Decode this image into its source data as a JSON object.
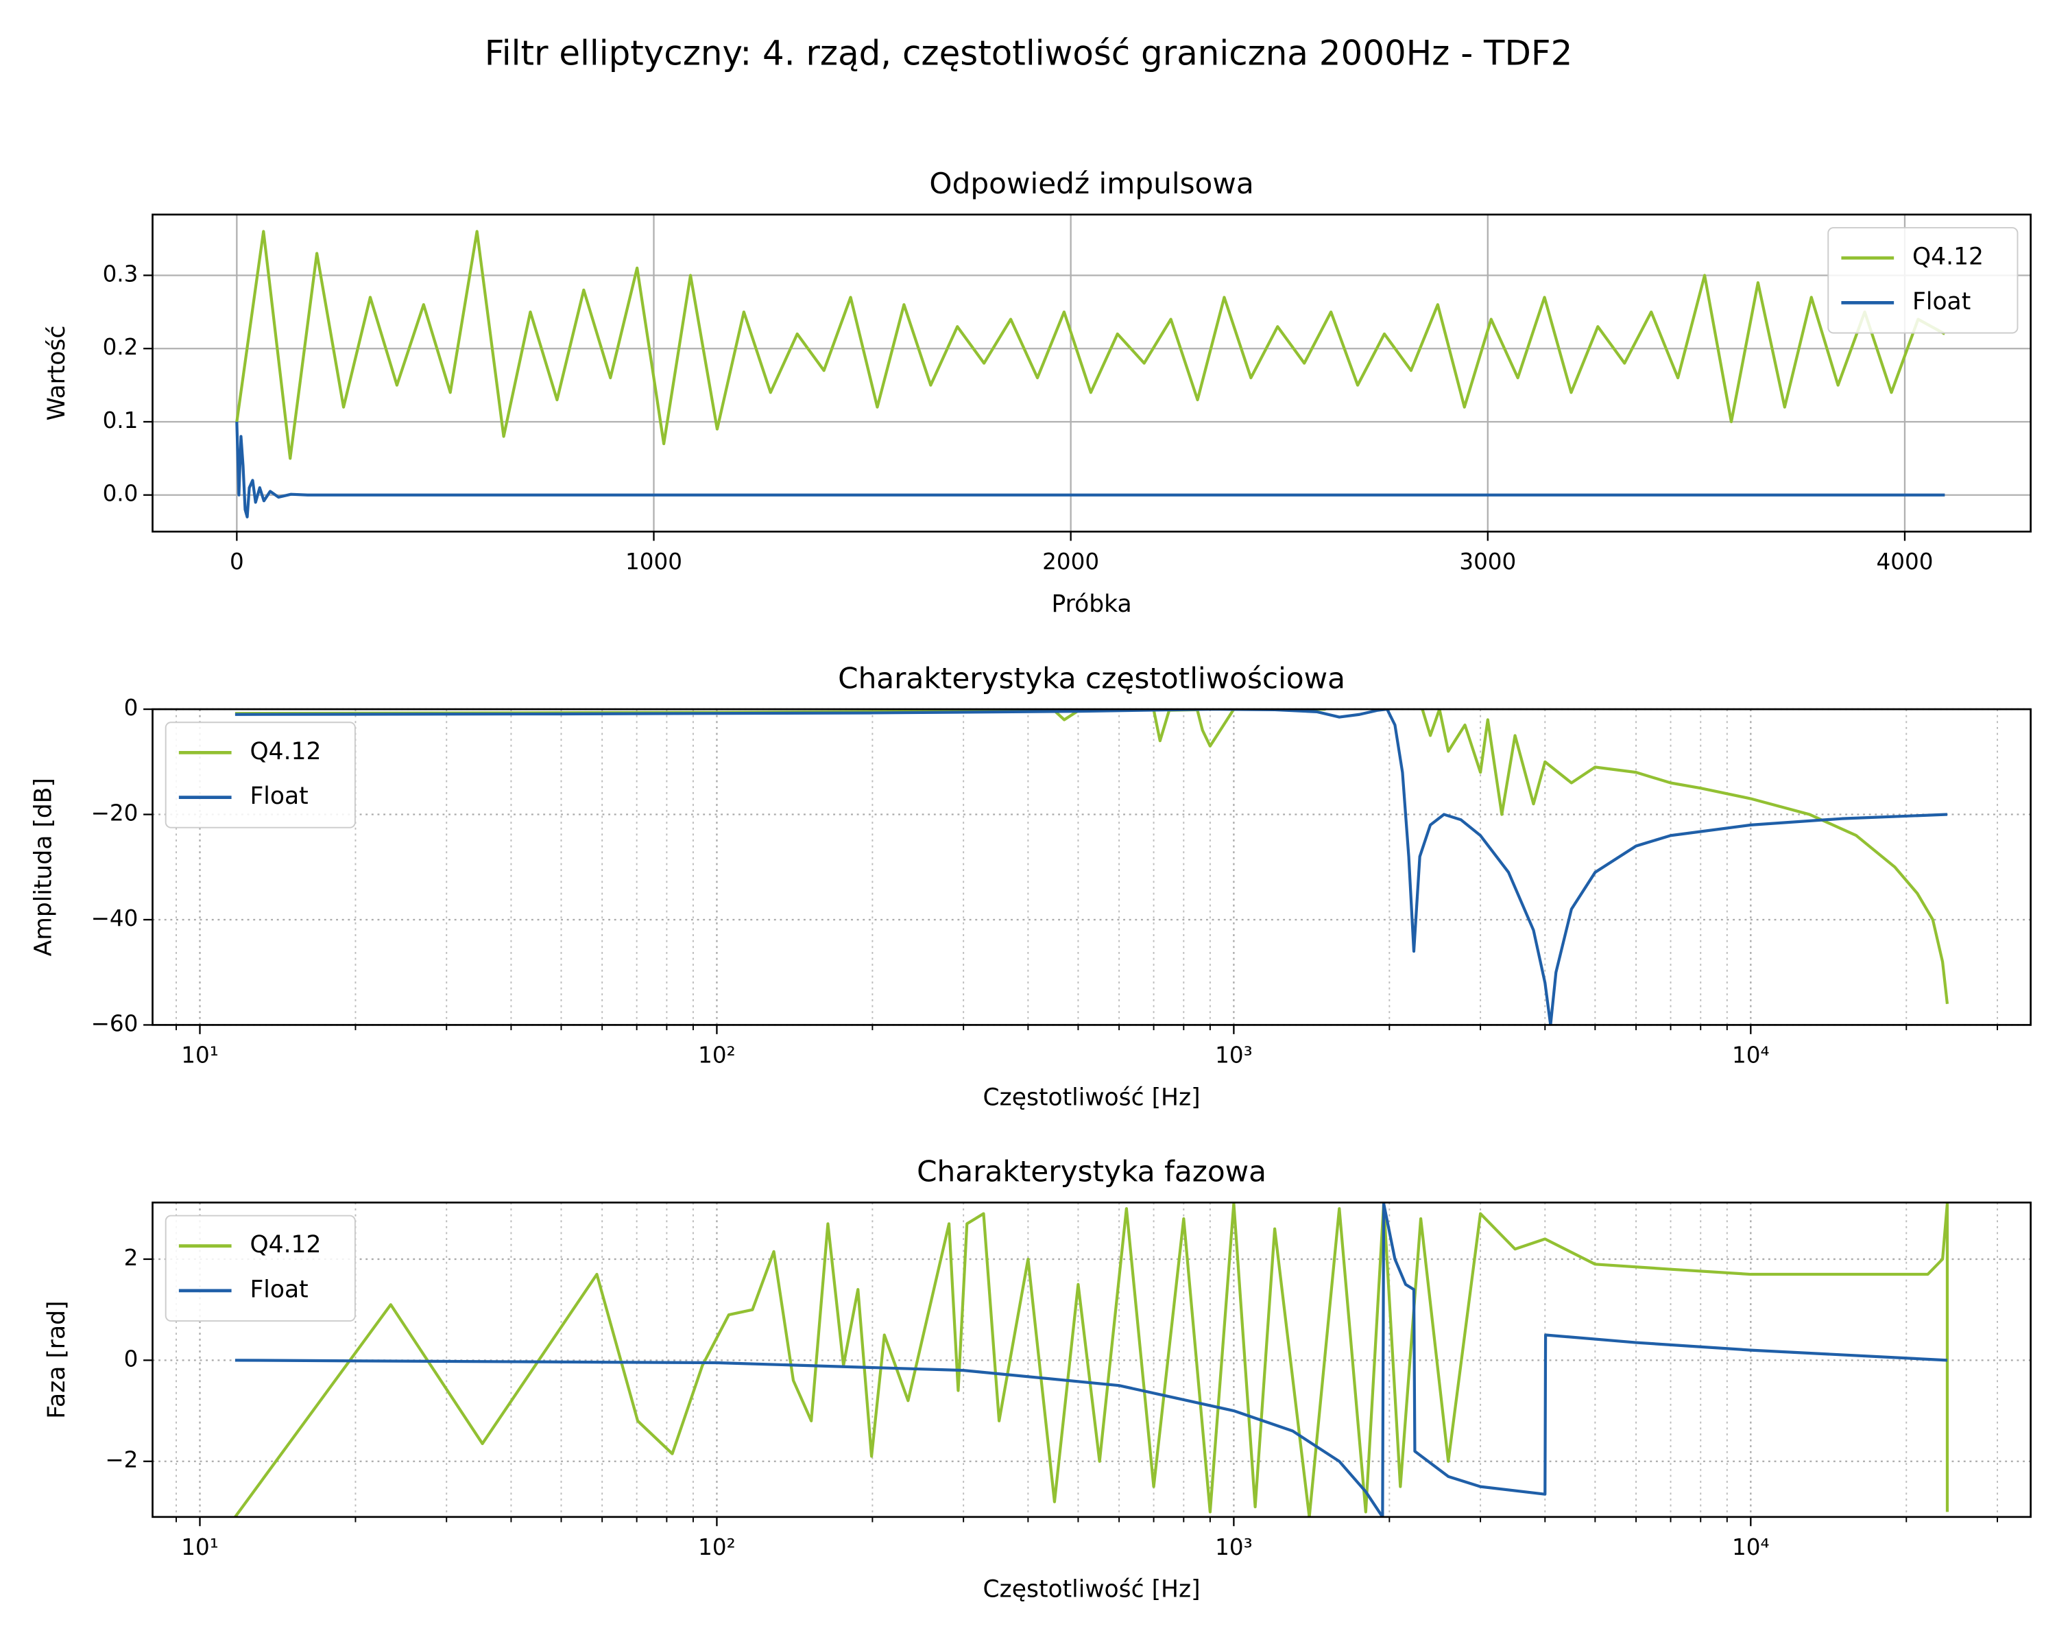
{
  "title": "Filtr elliptyczny: 4. rząd, częstotliwość graniczna 2000Hz - TDF2",
  "chart_data": [
    {
      "type": "line",
      "title": "Odpowiedź impulsowa",
      "xlabel": "Próbka",
      "ylabel": "Wartość",
      "xlim": [
        -202,
        4302
      ],
      "ylim": [
        -0.05,
        0.383
      ],
      "xticks": [
        0,
        1000,
        2000,
        3000,
        4000
      ],
      "yticks": [
        {
          "value": 0,
          "label": "0.0"
        },
        0.1,
        0.2,
        0.3
      ],
      "grid": "solid",
      "legend": "upper right",
      "series": [
        {
          "name": "Q4.12",
          "color": "#92c032",
          "x": [
            0,
            64,
            128,
            192,
            256,
            320,
            384,
            448,
            512,
            576,
            640,
            704,
            768,
            832,
            896,
            960,
            1024,
            1088,
            1152,
            1216,
            1280,
            1344,
            1408,
            1472,
            1536,
            1600,
            1664,
            1728,
            1792,
            1856,
            1920,
            1984,
            2048,
            2112,
            2176,
            2240,
            2304,
            2368,
            2432,
            2496,
            2560,
            2624,
            2688,
            2752,
            2816,
            2880,
            2944,
            3008,
            3072,
            3136,
            3200,
            3264,
            3328,
            3392,
            3456,
            3520,
            3584,
            3648,
            3712,
            3776,
            3840,
            3904,
            3968,
            4032,
            4096
          ],
          "values": [
            0.1,
            0.36,
            0.05,
            0.33,
            0.12,
            0.27,
            0.15,
            0.26,
            0.14,
            0.36,
            0.08,
            0.25,
            0.13,
            0.28,
            0.16,
            0.31,
            0.07,
            0.3,
            0.09,
            0.25,
            0.14,
            0.22,
            0.17,
            0.27,
            0.12,
            0.26,
            0.15,
            0.23,
            0.18,
            0.24,
            0.16,
            0.25,
            0.14,
            0.22,
            0.18,
            0.24,
            0.13,
            0.27,
            0.16,
            0.23,
            0.18,
            0.25,
            0.15,
            0.22,
            0.17,
            0.26,
            0.12,
            0.24,
            0.16,
            0.27,
            0.14,
            0.23,
            0.18,
            0.25,
            0.16,
            0.3,
            0.1,
            0.29,
            0.12,
            0.27,
            0.15,
            0.25,
            0.14,
            0.24,
            0.22
          ]
        },
        {
          "name": "Float",
          "color": "#1f5fa8",
          "x": [
            0,
            5,
            10,
            15,
            20,
            25,
            30,
            38,
            45,
            55,
            65,
            80,
            100,
            130,
            170,
            4096
          ],
          "values": [
            0.1,
            0.0,
            0.08,
            0.04,
            -0.02,
            -0.03,
            0.01,
            0.02,
            -0.01,
            0.01,
            -0.008,
            0.005,
            -0.003,
            0.001,
            0,
            0
          ]
        }
      ]
    },
    {
      "type": "line",
      "title": "Charakterystyka częstotliwościowa",
      "xlabel": "Częstotliwość [Hz]",
      "ylabel": "Amplituda [dB]",
      "xscale": "log",
      "xlim": [
        8.1,
        34800
      ],
      "ylim": [
        -60,
        0
      ],
      "xticks": [
        {
          "value": 10,
          "label": "10¹"
        },
        {
          "value": 100,
          "label": "10²"
        },
        {
          "value": 1000,
          "label": "10³"
        },
        {
          "value": 10000,
          "label": "10⁴"
        }
      ],
      "yticks": [
        {
          "value": -60,
          "label": "−60"
        },
        {
          "value": -40,
          "label": "−40"
        },
        {
          "value": -20,
          "label": "−20"
        },
        0
      ],
      "grid": "dotted",
      "minor_grid": true,
      "legend": "upper left",
      "series": [
        {
          "name": "Q4.12",
          "color": "#92c032",
          "x": [
            11.7,
            100,
            300,
            450,
            470,
            500,
            600,
            700,
            720,
            750,
            850,
            870,
            900,
            1000,
            1500,
            2000,
            2100,
            2200,
            2300,
            2400,
            2500,
            2600,
            2800,
            3000,
            3100,
            3300,
            3500,
            3800,
            4000,
            4500,
            5000,
            6000,
            7000,
            8000,
            10000,
            13000,
            16000,
            19000,
            21000,
            22500,
            23500,
            24000
          ],
          "values": [
            -0.8,
            -0.6,
            -0.4,
            -0.3,
            -2,
            -0.3,
            -0.2,
            -0.1,
            -6,
            -0.2,
            -0.1,
            -4,
            -7,
            0,
            0,
            5,
            2,
            3,
            1,
            -5,
            0,
            -8,
            -3,
            -12,
            -2,
            -20,
            -5,
            -18,
            -10,
            -14,
            -11,
            -12,
            -14,
            -15,
            -17,
            -20,
            -24,
            -30,
            -35,
            -40,
            -48,
            -56
          ]
        },
        {
          "name": "Float",
          "color": "#1f5fa8",
          "x": [
            11.7,
            50,
            200,
            500,
            900,
            1200,
            1450,
            1600,
            1750,
            1900,
            1980,
            2050,
            2120,
            2180,
            2230,
            2290,
            2400,
            2550,
            2750,
            3000,
            3400,
            3800,
            4000,
            4100,
            4200,
            4500,
            5000,
            6000,
            7000,
            10000,
            15000,
            24000
          ],
          "values": [
            -1,
            -0.9,
            -0.7,
            -0.4,
            0,
            -0.1,
            -0.5,
            -1.5,
            -1,
            -0.2,
            0,
            -3,
            -12,
            -28,
            -46,
            -28,
            -22,
            -20,
            -21,
            -24,
            -31,
            -42,
            -52,
            -60,
            -50,
            -38,
            -31,
            -26,
            -24,
            -22,
            -20.8,
            -20
          ]
        }
      ]
    },
    {
      "type": "line",
      "title": "Charakterystyka fazowa",
      "xlabel": "Częstotliwość [Hz]",
      "ylabel": "Faza [rad]",
      "xscale": "log",
      "xlim": [
        8.1,
        34800
      ],
      "ylim": [
        -3.1,
        3.12
      ],
      "xticks": [
        {
          "value": 10,
          "label": "10¹"
        },
        {
          "value": 100,
          "label": "10²"
        },
        {
          "value": 1000,
          "label": "10³"
        },
        {
          "value": 10000,
          "label": "10⁴"
        }
      ],
      "yticks": [
        {
          "value": -2,
          "label": "−2"
        },
        0,
        2
      ],
      "grid": "dotted",
      "minor_grid": true,
      "legend": "upper left",
      "series": [
        {
          "name": "Q4.12",
          "color": "#92c032",
          "x": [
            11.7,
            23.4,
            35.2,
            58.6,
            70.3,
            82,
            93.8,
            105.5,
            117.2,
            128.9,
            140.6,
            152.3,
            164,
            175.8,
            187.5,
            199.2,
            210.9,
            234.4,
            281.3,
            293,
            304.7,
            328.1,
            351.6,
            400,
            450,
            500,
            550,
            620,
            700,
            800,
            900,
            1000,
            1100,
            1200,
            1400,
            1600,
            1800,
            1950,
            2100,
            2300,
            2600,
            3000,
            3500,
            4000,
            5000,
            7000,
            10000,
            15000,
            22000,
            23500,
            24000,
            24001
          ],
          "values": [
            -3.1,
            1.1,
            -1.65,
            1.7,
            -1.2,
            -1.85,
            -0.1,
            0.9,
            1.0,
            2.15,
            -0.4,
            -1.2,
            2.7,
            -0.1,
            1.4,
            -1.9,
            0.5,
            -0.8,
            2.7,
            -0.6,
            2.7,
            2.9,
            -1.2,
            2.0,
            -2.8,
            1.5,
            -2.0,
            3.0,
            -2.5,
            2.8,
            -3.0,
            3.1,
            -2.9,
            2.6,
            -3.1,
            3.0,
            -3.0,
            3.1,
            -2.5,
            2.8,
            -2.0,
            2.9,
            2.2,
            2.4,
            1.9,
            1.8,
            1.7,
            1.7,
            1.7,
            2.0,
            3.1,
            -3.0
          ]
        },
        {
          "name": "Float",
          "color": "#1f5fa8",
          "x": [
            11.7,
            100,
            300,
            600,
            1000,
            1300,
            1600,
            1800,
            1940,
            1950,
            2050,
            2150,
            2230,
            2240,
            2600,
            3000,
            4000,
            4010,
            6000,
            10000,
            24000
          ],
          "values": [
            0,
            -0.05,
            -0.2,
            -0.5,
            -1.0,
            -1.4,
            -2.0,
            -2.6,
            -3.1,
            3.1,
            2.0,
            1.5,
            1.4,
            -1.8,
            -2.3,
            -2.5,
            -2.65,
            0.5,
            0.35,
            0.2,
            0
          ]
        }
      ]
    }
  ]
}
